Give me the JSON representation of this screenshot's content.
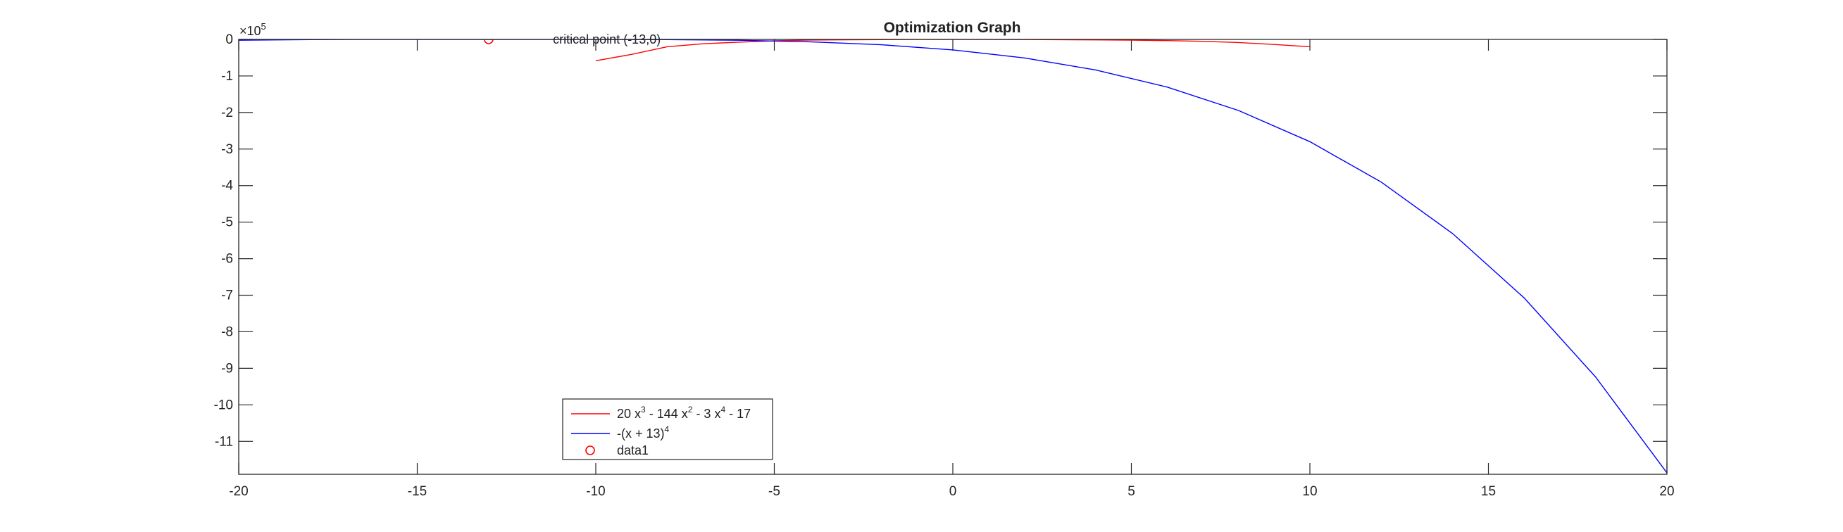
{
  "chart_data": {
    "type": "line",
    "title": "Optimization Graph",
    "xlabel": "",
    "ylabel": "",
    "xlim": [
      -20,
      20
    ],
    "ylim": [
      -11.9,
      0
    ],
    "y_exponent_label": "×10",
    "y_exponent_power": "5",
    "x_ticks": [
      -20,
      -15,
      -10,
      -5,
      0,
      5,
      10,
      15,
      20
    ],
    "x_tick_labels": [
      "-20",
      "-15",
      "-10",
      "-5",
      "0",
      "5",
      "10",
      "15",
      "20"
    ],
    "y_ticks": [
      0,
      -1,
      -2,
      -3,
      -4,
      -5,
      -6,
      -7,
      -8,
      -9,
      -10,
      -11
    ],
    "y_tick_labels": [
      "0",
      "-1",
      "-2",
      "-3",
      "-4",
      "-5",
      "-6",
      "-7",
      "-8",
      "-9",
      "-10",
      "-11"
    ],
    "series": [
      {
        "name": "20 x^3 - 144 x^2 - 3 x^4 - 17",
        "color": "#ff0000",
        "x": [
          -10,
          -9,
          -8,
          -7,
          -6,
          -5,
          -4,
          -3,
          -2,
          -1,
          0,
          1,
          2,
          3,
          4,
          5,
          6,
          7,
          8,
          9,
          10
        ],
        "y": [
          -0.584,
          -0.41,
          -0.2,
          -0.12,
          -0.076,
          -0.0376,
          -0.0177,
          -0.0099,
          -0.0066,
          -0.0018,
          -0.0002,
          -0.0013,
          -0.0042,
          -0.0082,
          -0.0131,
          -0.0202,
          -0.0319,
          -0.0519,
          -0.0853,
          -0.1384,
          -0.2
        ]
      },
      {
        "name": "-(x + 13)^4",
        "color": "#0000ff",
        "x": [
          -20,
          -18,
          -16,
          -14,
          -13,
          -12,
          -10,
          -8,
          -6,
          -4,
          -2,
          0,
          2,
          4,
          6,
          8,
          10,
          12,
          14,
          16,
          18,
          20
        ],
        "y": [
          -0.024,
          -0.0063,
          -0.0008,
          -1e-05,
          0,
          -1e-05,
          -0.0008,
          -0.0063,
          -0.024,
          -0.0656,
          -0.146,
          -0.286,
          -0.506,
          -0.835,
          -1.303,
          -1.945,
          -2.798,
          -3.906,
          -5.314,
          -7.073,
          -9.235,
          -11.86
        ]
      },
      {
        "name": "data1",
        "color": "#ff0000",
        "marker": "circle",
        "x": [
          -13
        ],
        "y": [
          0
        ]
      }
    ],
    "annotations": [
      {
        "text": "critical point (-13,0)",
        "x": -11.2,
        "y": 0
      }
    ],
    "legend": {
      "placement": "bottom-center",
      "entries": [
        {
          "base": "20 x",
          "sup1": "3",
          "mid1": " - 144 x",
          "sup2": "2",
          "mid2": " - 3 x",
          "sup3": "4",
          "tail": " - 17"
        },
        {
          "base": "-(x + 13)",
          "sup1": "4"
        },
        {
          "base": "data1"
        }
      ]
    },
    "grid": false
  }
}
